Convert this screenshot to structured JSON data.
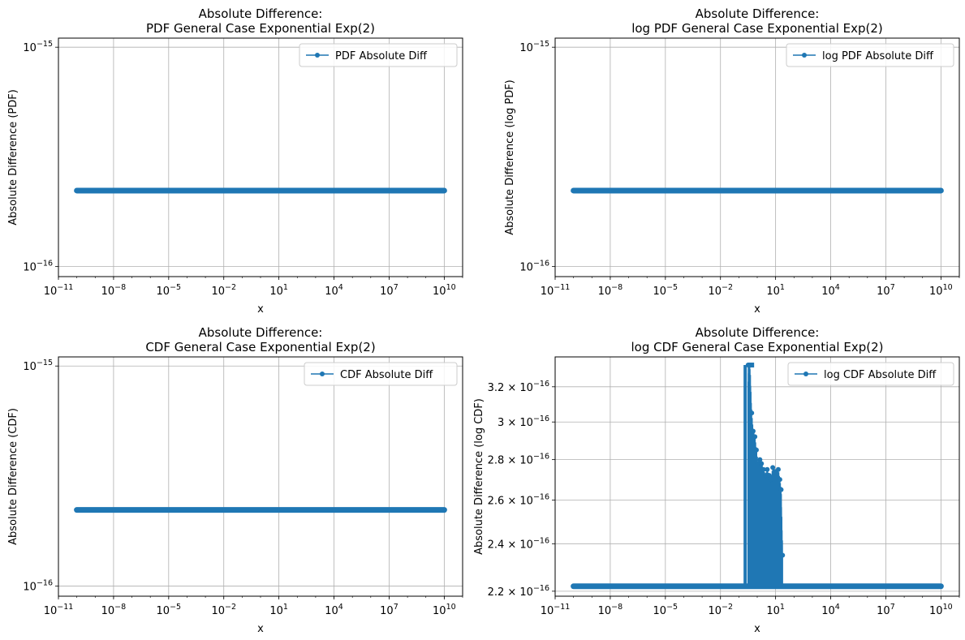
{
  "chart_data": [
    {
      "type": "line",
      "title_line1": "Absolute Difference:",
      "title_line2": "PDF General Case Exponential Exp(2)",
      "xlabel": "x",
      "ylabel": "Absolute Difference (PDF)",
      "xscale": "log",
      "yscale": "log",
      "xlim": [
        1e-11,
        100000000000.0
      ],
      "ylim": [
        9e-17,
        1.1e-15
      ],
      "xticks": [
        {
          "v": 1e-11,
          "b": "10",
          "e": "−11"
        },
        {
          "v": 1e-08,
          "b": "10",
          "e": "−8"
        },
        {
          "v": 1e-05,
          "b": "10",
          "e": "−5"
        },
        {
          "v": 0.01,
          "b": "10",
          "e": "−2"
        },
        {
          "v": 10,
          "b": "10",
          "e": "1"
        },
        {
          "v": 10000.0,
          "b": "10",
          "e": "4"
        },
        {
          "v": 10000000.0,
          "b": "10",
          "e": "7"
        },
        {
          "v": 10000000000.0,
          "b": "10",
          "e": "10"
        }
      ],
      "yticks": [
        {
          "v": 1e-16,
          "b": "10",
          "e": "−16"
        },
        {
          "v": 1e-15,
          "b": "10",
          "e": "−15"
        }
      ],
      "grid": true,
      "legend_position": "top-right",
      "color": "#1f77b4",
      "series": [
        {
          "name": "PDF Absolute Diff",
          "x_range": [
            1e-10,
            10000000000.0
          ],
          "y_constant": 2.22e-16
        }
      ]
    },
    {
      "type": "line",
      "title_line1": "Absolute Difference:",
      "title_line2": "log PDF General Case Exponential Exp(2)",
      "xlabel": "x",
      "ylabel": "Absolute Difference (log PDF)",
      "xscale": "log",
      "yscale": "log",
      "xlim": [
        1e-11,
        100000000000.0
      ],
      "ylim": [
        9e-17,
        1.1e-15
      ],
      "xticks": [
        {
          "v": 1e-11,
          "b": "10",
          "e": "−11"
        },
        {
          "v": 1e-08,
          "b": "10",
          "e": "−8"
        },
        {
          "v": 1e-05,
          "b": "10",
          "e": "−5"
        },
        {
          "v": 0.01,
          "b": "10",
          "e": "−2"
        },
        {
          "v": 10,
          "b": "10",
          "e": "1"
        },
        {
          "v": 10000.0,
          "b": "10",
          "e": "4"
        },
        {
          "v": 10000000.0,
          "b": "10",
          "e": "7"
        },
        {
          "v": 10000000000.0,
          "b": "10",
          "e": "10"
        }
      ],
      "yticks": [
        {
          "v": 1e-16,
          "b": "10",
          "e": "−16"
        },
        {
          "v": 1e-15,
          "b": "10",
          "e": "−15"
        }
      ],
      "grid": true,
      "legend_position": "top-right",
      "color": "#1f77b4",
      "series": [
        {
          "name": "log PDF Absolute Diff",
          "x_range": [
            1e-10,
            10000000000.0
          ],
          "y_constant": 2.22e-16
        }
      ]
    },
    {
      "type": "line",
      "title_line1": "Absolute Difference:",
      "title_line2": "CDF General Case Exponential Exp(2)",
      "xlabel": "x",
      "ylabel": "Absolute Difference (CDF)",
      "xscale": "log",
      "yscale": "log",
      "xlim": [
        1e-11,
        100000000000.0
      ],
      "ylim": [
        9e-17,
        1.1e-15
      ],
      "xticks": [
        {
          "v": 1e-11,
          "b": "10",
          "e": "−11"
        },
        {
          "v": 1e-08,
          "b": "10",
          "e": "−8"
        },
        {
          "v": 1e-05,
          "b": "10",
          "e": "−5"
        },
        {
          "v": 0.01,
          "b": "10",
          "e": "−2"
        },
        {
          "v": 10,
          "b": "10",
          "e": "1"
        },
        {
          "v": 10000.0,
          "b": "10",
          "e": "4"
        },
        {
          "v": 10000000.0,
          "b": "10",
          "e": "7"
        },
        {
          "v": 10000000000.0,
          "b": "10",
          "e": "10"
        }
      ],
      "yticks": [
        {
          "v": 1e-16,
          "b": "10",
          "e": "−16"
        },
        {
          "v": 1e-15,
          "b": "10",
          "e": "−15"
        }
      ],
      "grid": true,
      "legend_position": "top-right",
      "color": "#1f77b4",
      "series": [
        {
          "name": "CDF Absolute Diff",
          "x_range": [
            1e-10,
            10000000000.0
          ],
          "y_constant": 2.22e-16
        }
      ]
    },
    {
      "type": "line",
      "title_line1": "Absolute Difference:",
      "title_line2": "log CDF General Case Exponential Exp(2)",
      "xlabel": "x",
      "ylabel": "Absolute Difference (log CDF)",
      "xscale": "log",
      "yscale": "log",
      "xlim": [
        1e-11,
        100000000000.0
      ],
      "ylim": [
        2.18e-16,
        3.38e-16
      ],
      "xticks": [
        {
          "v": 1e-11,
          "b": "10",
          "e": "−11"
        },
        {
          "v": 1e-08,
          "b": "10",
          "e": "−8"
        },
        {
          "v": 1e-05,
          "b": "10",
          "e": "−5"
        },
        {
          "v": 0.01,
          "b": "10",
          "e": "−2"
        },
        {
          "v": 10,
          "b": "10",
          "e": "1"
        },
        {
          "v": 10000.0,
          "b": "10",
          "e": "4"
        },
        {
          "v": 10000000.0,
          "b": "10",
          "e": "7"
        },
        {
          "v": 10000000000.0,
          "b": "10",
          "e": "10"
        }
      ],
      "yticks": [
        {
          "v": 2.2e-16,
          "b": "2.2 × 10",
          "e": "−16"
        },
        {
          "v": 2.4e-16,
          "b": "2.4 × 10",
          "e": "−16"
        },
        {
          "v": 2.6e-16,
          "b": "2.6 × 10",
          "e": "−16"
        },
        {
          "v": 2.8e-16,
          "b": "2.8 × 10",
          "e": "−16"
        },
        {
          "v": 3e-16,
          "b": "3 × 10",
          "e": "−16"
        },
        {
          "v": 3.2e-16,
          "b": "3.2 × 10",
          "e": "−16"
        }
      ],
      "grid": true,
      "legend_position": "top-right",
      "color": "#1f77b4",
      "series": [
        {
          "name": "log CDF Absolute Diff",
          "baseline": {
            "y": 2.22e-16,
            "x_range": [
              1e-10,
              10000000000.0
            ]
          },
          "spike_region": {
            "x_range": [
              0.3,
              30
            ]
          },
          "spikes": [
            {
              "x": 0.32,
              "y": 3.33e-16
            },
            {
              "x": 0.4,
              "y": 3.33e-16
            },
            {
              "x": 0.5,
              "y": 3.05e-16
            },
            {
              "x": 0.6,
              "y": 2.95e-16
            },
            {
              "x": 0.75,
              "y": 2.92e-16
            },
            {
              "x": 0.9,
              "y": 2.85e-16
            },
            {
              "x": 1.1,
              "y": 2.78e-16
            },
            {
              "x": 1.4,
              "y": 2.8e-16
            },
            {
              "x": 1.7,
              "y": 2.78e-16
            },
            {
              "x": 2.2,
              "y": 2.75e-16
            },
            {
              "x": 2.8,
              "y": 2.72e-16
            },
            {
              "x": 3.5,
              "y": 2.75e-16
            },
            {
              "x": 4.5,
              "y": 2.72e-16
            },
            {
              "x": 5.5,
              "y": 2.7e-16
            },
            {
              "x": 7,
              "y": 2.76e-16
            },
            {
              "x": 9,
              "y": 2.74e-16
            },
            {
              "x": 11,
              "y": 2.73e-16
            },
            {
              "x": 14,
              "y": 2.75e-16
            },
            {
              "x": 17,
              "y": 2.7e-16
            },
            {
              "x": 20,
              "y": 2.65e-16
            },
            {
              "x": 24,
              "y": 2.35e-16
            }
          ]
        }
      ]
    }
  ]
}
